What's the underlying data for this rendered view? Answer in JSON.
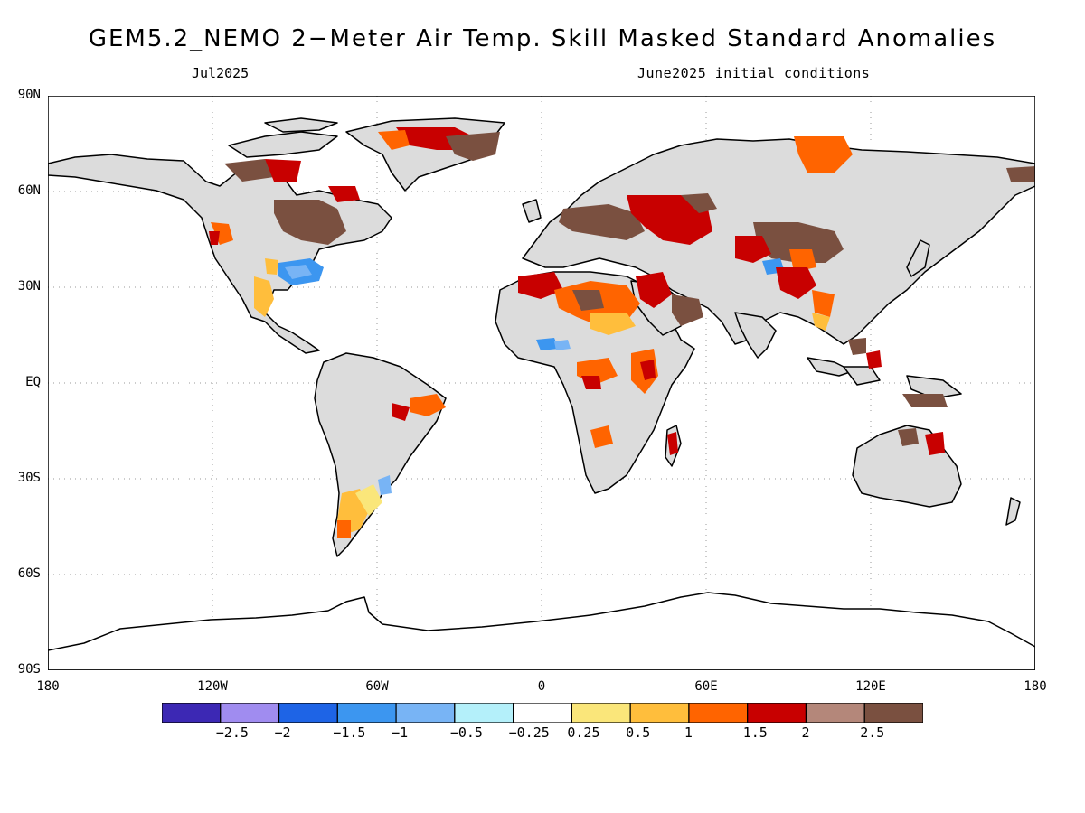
{
  "title": "GEM5.2_NEMO 2−Meter Air Temp. Skill Masked Standard Anomalies",
  "period": "Jul2025",
  "initial_conditions": "June2025 initial conditions",
  "lat_labels": [
    "90N",
    "60N",
    "30N",
    "EQ",
    "30S",
    "60S",
    "90S"
  ],
  "lon_labels": [
    "180",
    "120W",
    "60W",
    "0",
    "60E",
    "120E",
    "180"
  ],
  "colorbar": {
    "colors": [
      "#3c28b4",
      "#a08cf0",
      "#1e64e6",
      "#3c96f0",
      "#78b4f5",
      "#b4f0fa",
      "#ffffff",
      "#fae67a",
      "#ffbe3c",
      "#ff6400",
      "#c80000",
      "#b4877a",
      "#7a5040"
    ],
    "labels": [
      "−2.5",
      "−2",
      "−1.5",
      "−1",
      "−0.5",
      "−0.25",
      "0.25",
      "0.5",
      "1",
      "1.5",
      "2",
      "2.5"
    ]
  },
  "land_color": "#dcdcdc"
}
